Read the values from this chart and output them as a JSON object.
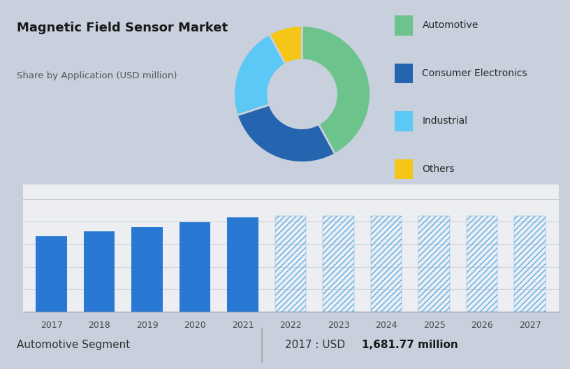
{
  "title": "Magnetic Field Sensor Market",
  "subtitle": "Share by Application (USD million)",
  "background_color": "#c8d0de",
  "bar_area_bg": "#eceef2",
  "pie_labels": [
    "Automotive",
    "Consumer Electronics",
    "Industrial",
    "Others"
  ],
  "pie_values": [
    42,
    28,
    22,
    8
  ],
  "pie_colors": [
    "#6cc48c",
    "#2564ae",
    "#5bc8f5",
    "#f5c518"
  ],
  "bar_years": [
    2017,
    2018,
    2019,
    2020,
    2021,
    2022,
    2023,
    2024,
    2025,
    2026,
    2027
  ],
  "bar_values": [
    1681.77,
    1780,
    1870,
    1980,
    2090,
    2090,
    2090,
    2090,
    2090,
    2090,
    2090
  ],
  "bar_solid_color": "#2878d4",
  "bar_hatch_color": "#5aaee8",
  "bar_hatch_pattern": "////",
  "solid_bars_count": 5,
  "footer_left": "Automotive Segment",
  "footer_year": "2017 : USD ",
  "footer_value": "1,681.77 million",
  "footer_divider": "|",
  "footer_bg": "#f5f5f5",
  "title_fontsize": 13,
  "subtitle_fontsize": 9.5,
  "legend_fontsize": 10,
  "footer_fontsize": 11
}
